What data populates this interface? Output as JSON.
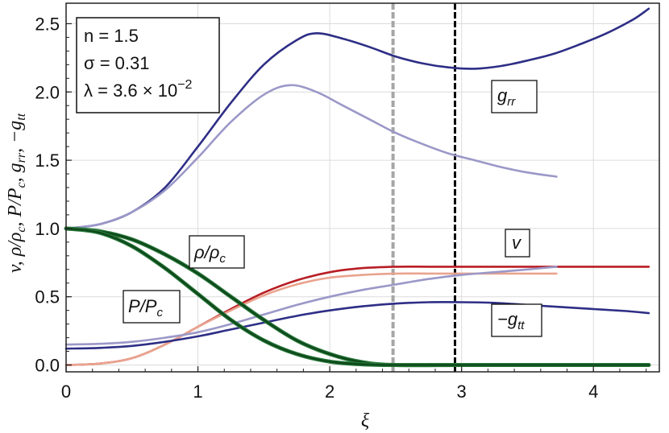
{
  "chart_data": {
    "type": "line",
    "xlabel": "ξ",
    "ylabel": "v,  ρ/ρc,  P/Pc,  grr,  −gtt",
    "xlim": [
      0,
      4.5
    ],
    "ylim": [
      -0.05,
      2.65
    ],
    "x_ticks": [
      "0",
      "1",
      "2",
      "3",
      "4"
    ],
    "y_ticks": [
      "0.0",
      "0.5",
      "1.0",
      "1.5",
      "2.0",
      "2.5"
    ],
    "grid": true,
    "parameters": {
      "n": "n = 1.5",
      "sigma": "σ = 0.31",
      "lambda": "λ = 3.6 × 10",
      "lambda_exp": "−2"
    },
    "labels": {
      "grr": "grr",
      "v": "v",
      "rho": "ρ/ρc",
      "P": "P/Pc",
      "gtt": "−gtt"
    },
    "vlines": [
      {
        "x": 2.48,
        "color": "#a6a6a6",
        "style": "dashed"
      },
      {
        "x": 2.95,
        "color": "#000000",
        "style": "dashed"
      }
    ],
    "series": [
      {
        "color": "#2e2e86",
        "x": [
          0,
          0.25,
          0.5,
          0.75,
          1,
          1.25,
          1.5,
          1.75,
          1.9,
          2.1,
          2.3,
          2.5,
          2.7,
          2.9,
          3.1,
          3.3,
          3.5,
          3.7,
          3.9,
          4.1,
          4.3,
          4.42
        ],
        "y": [
          1.0,
          1.03,
          1.12,
          1.3,
          1.6,
          1.92,
          2.2,
          2.38,
          2.43,
          2.39,
          2.33,
          2.26,
          2.21,
          2.18,
          2.17,
          2.19,
          2.23,
          2.28,
          2.35,
          2.43,
          2.53,
          2.61
        ]
      },
      {
        "color": "#9b98c8",
        "x": [
          0,
          0.25,
          0.5,
          0.75,
          1,
          1.25,
          1.5,
          1.7,
          1.9,
          2.1,
          2.3,
          2.5,
          2.7,
          2.9,
          3.1,
          3.3,
          3.5,
          3.72
        ],
        "y": [
          1.0,
          1.03,
          1.12,
          1.28,
          1.52,
          1.78,
          1.98,
          2.05,
          2.0,
          1.9,
          1.8,
          1.7,
          1.62,
          1.55,
          1.5,
          1.45,
          1.41,
          1.38
        ]
      },
      {
        "color": "#b81e24",
        "x": [
          0,
          0.25,
          0.5,
          0.75,
          1,
          1.25,
          1.5,
          1.75,
          2,
          2.25,
          2.5,
          2.75,
          3,
          3.5,
          4,
          4.42
        ],
        "y": [
          0.0,
          0.01,
          0.05,
          0.15,
          0.28,
          0.41,
          0.53,
          0.62,
          0.68,
          0.71,
          0.72,
          0.72,
          0.72,
          0.72,
          0.72,
          0.72
        ]
      },
      {
        "color": "#e9a38e",
        "x": [
          0,
          0.25,
          0.5,
          0.75,
          1,
          1.25,
          1.5,
          1.75,
          2,
          2.25,
          2.5,
          2.75,
          3,
          3.5,
          3.72
        ],
        "y": [
          0.0,
          0.01,
          0.05,
          0.15,
          0.28,
          0.4,
          0.51,
          0.59,
          0.64,
          0.66,
          0.67,
          0.67,
          0.67,
          0.67,
          0.67
        ]
      },
      {
        "color": "#9b98c8",
        "x": [
          0,
          0.25,
          0.5,
          0.75,
          1,
          1.25,
          1.5,
          1.75,
          2,
          2.25,
          2.5,
          2.75,
          3,
          3.25,
          3.5,
          3.72
        ],
        "y": [
          0.15,
          0.155,
          0.17,
          0.2,
          0.24,
          0.3,
          0.37,
          0.44,
          0.5,
          0.55,
          0.59,
          0.63,
          0.66,
          0.68,
          0.7,
          0.72
        ]
      },
      {
        "color": "#2e2e86",
        "x": [
          0,
          0.25,
          0.5,
          0.75,
          1,
          1.25,
          1.5,
          1.75,
          2,
          2.25,
          2.5,
          2.75,
          3,
          3.25,
          3.5,
          3.75,
          4,
          4.25,
          4.42
        ],
        "y": [
          0.12,
          0.125,
          0.14,
          0.17,
          0.21,
          0.26,
          0.31,
          0.36,
          0.4,
          0.43,
          0.45,
          0.46,
          0.46,
          0.455,
          0.44,
          0.425,
          0.41,
          0.395,
          0.38
        ]
      },
      {
        "color": "#2b7a3c",
        "width": 5,
        "x": [
          0,
          0.25,
          0.5,
          0.75,
          1,
          1.25,
          1.5,
          1.75,
          2,
          2.25,
          2.5,
          3,
          3.5,
          4,
          4.42
        ],
        "y": [
          1.0,
          0.98,
          0.92,
          0.81,
          0.67,
          0.5,
          0.33,
          0.18,
          0.08,
          0.02,
          0.0,
          0.0,
          0.0,
          0.0,
          0.0
        ]
      },
      {
        "color": "#0e4a1c",
        "x": [
          0,
          0.25,
          0.5,
          0.75,
          1,
          1.25,
          1.5,
          1.75,
          2,
          2.25,
          2.5,
          3,
          3.5,
          4,
          4.42
        ],
        "y": [
          1.0,
          0.98,
          0.92,
          0.81,
          0.67,
          0.5,
          0.33,
          0.18,
          0.08,
          0.02,
          0.0,
          0.0,
          0.0,
          0.0,
          0.0
        ]
      },
      {
        "color": "#2b7a3c",
        "width": 5,
        "x": [
          0,
          0.25,
          0.5,
          0.75,
          1,
          1.25,
          1.5,
          1.75,
          2,
          2.25,
          2.5,
          3,
          3.5,
          4,
          4.42
        ],
        "y": [
          1.0,
          0.97,
          0.87,
          0.71,
          0.52,
          0.33,
          0.18,
          0.08,
          0.025,
          0.005,
          0.0,
          0.0,
          0.0,
          0.0,
          0.0
        ]
      },
      {
        "color": "#0e4a1c",
        "x": [
          0,
          0.25,
          0.5,
          0.75,
          1,
          1.25,
          1.5,
          1.75,
          2,
          2.25,
          2.5,
          3,
          3.5,
          4,
          4.42
        ],
        "y": [
          1.0,
          0.97,
          0.87,
          0.71,
          0.52,
          0.33,
          0.18,
          0.08,
          0.025,
          0.005,
          0.0,
          0.0,
          0.0,
          0.0,
          0.0
        ]
      }
    ]
  }
}
